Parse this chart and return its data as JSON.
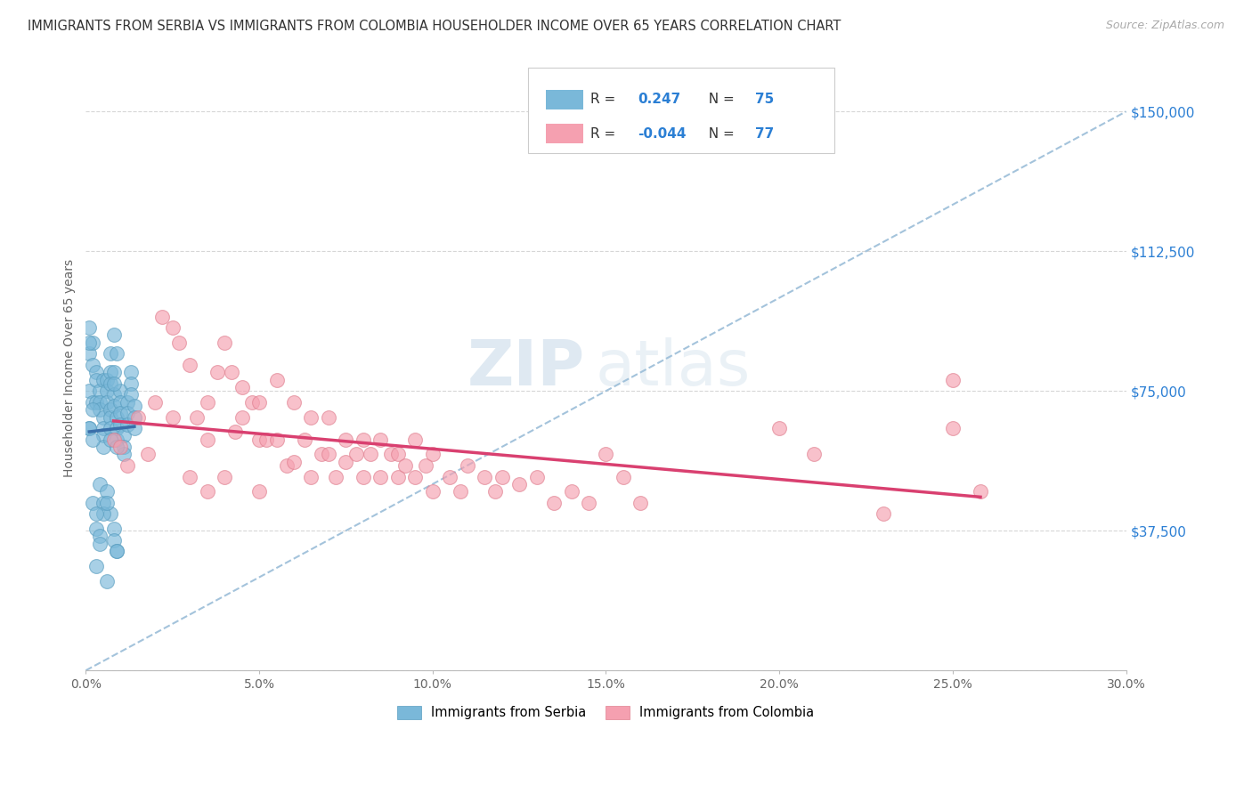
{
  "title": "IMMIGRANTS FROM SERBIA VS IMMIGRANTS FROM COLOMBIA HOUSEHOLDER INCOME OVER 65 YEARS CORRELATION CHART",
  "source": "Source: ZipAtlas.com",
  "ylabel": "Householder Income Over 65 years",
  "xlim": [
    0.0,
    0.3
  ],
  "ylim": [
    0,
    162500
  ],
  "xtick_labels": [
    "0.0%",
    "",
    "5.0%",
    "",
    "10.0%",
    "",
    "15.0%",
    "",
    "20.0%",
    "",
    "25.0%",
    "",
    "30.0%"
  ],
  "xtick_vals": [
    0.0,
    0.025,
    0.05,
    0.075,
    0.1,
    0.125,
    0.15,
    0.175,
    0.2,
    0.225,
    0.25,
    0.275,
    0.3
  ],
  "ytick_vals": [
    0,
    37500,
    75000,
    112500,
    150000
  ],
  "ytick_labels": [
    "",
    "$37,500",
    "$75,000",
    "$112,500",
    "$150,000"
  ],
  "serbia_color": "#7ab8d9",
  "colombia_color": "#f5a0b0",
  "serbia_edge_color": "#5a9ec0",
  "colombia_edge_color": "#e08090",
  "serbia_line_color": "#3a6faa",
  "colombia_line_color": "#d94070",
  "ref_line_color": "#9abdd8",
  "serbia_R": "0.247",
  "serbia_N": "75",
  "colombia_R": "-0.044",
  "colombia_N": "77",
  "serbia_label": "Immigrants from Serbia",
  "colombia_label": "Immigrants from Colombia",
  "background_color": "#ffffff",
  "grid_color": "#cccccc",
  "watermark_zip": "ZIP",
  "watermark_atlas": "atlas",
  "title_color": "#333333",
  "axis_label_color": "#666666",
  "value_color": "#2b7fd4",
  "serbia_pts_x": [
    0.001,
    0.001,
    0.001,
    0.001,
    0.002,
    0.002,
    0.002,
    0.002,
    0.003,
    0.003,
    0.003,
    0.003,
    0.004,
    0.004,
    0.004,
    0.004,
    0.004,
    0.005,
    0.005,
    0.005,
    0.005,
    0.005,
    0.006,
    0.006,
    0.006,
    0.006,
    0.007,
    0.007,
    0.007,
    0.007,
    0.007,
    0.007,
    0.008,
    0.008,
    0.008,
    0.008,
    0.008,
    0.009,
    0.009,
    0.009,
    0.009,
    0.01,
    0.01,
    0.01,
    0.01,
    0.011,
    0.011,
    0.011,
    0.012,
    0.012,
    0.012,
    0.013,
    0.013,
    0.013,
    0.014,
    0.014,
    0.003,
    0.004,
    0.005,
    0.005,
    0.006,
    0.006,
    0.007,
    0.007,
    0.008,
    0.008,
    0.009,
    0.009,
    0.002,
    0.001,
    0.001,
    0.002,
    0.003,
    0.009,
    0.014
  ],
  "serbia_pts_y": [
    92000,
    85000,
    75000,
    65000,
    88000,
    82000,
    72000,
    45000,
    80000,
    78000,
    72000,
    38000,
    75000,
    72000,
    70000,
    50000,
    36000,
    78000,
    68000,
    65000,
    63000,
    45000,
    78000,
    75000,
    72000,
    48000,
    80000,
    77000,
    70000,
    68000,
    65000,
    42000,
    80000,
    74000,
    71000,
    38000,
    35000,
    68000,
    65000,
    62000,
    32000,
    75000,
    72000,
    69000,
    66000,
    63000,
    60000,
    58000,
    72000,
    69000,
    66000,
    80000,
    77000,
    74000,
    71000,
    68000,
    28000,
    34000,
    42000,
    60000,
    24000,
    45000,
    62000,
    85000,
    77000,
    90000,
    60000,
    85000,
    70000,
    88000,
    65000,
    62000,
    42000,
    32000,
    65000
  ],
  "colombia_pts_x": [
    0.008,
    0.01,
    0.012,
    0.015,
    0.018,
    0.02,
    0.022,
    0.025,
    0.025,
    0.027,
    0.03,
    0.03,
    0.032,
    0.035,
    0.035,
    0.035,
    0.038,
    0.04,
    0.04,
    0.042,
    0.043,
    0.045,
    0.045,
    0.048,
    0.05,
    0.05,
    0.05,
    0.052,
    0.055,
    0.055,
    0.058,
    0.06,
    0.06,
    0.063,
    0.065,
    0.065,
    0.068,
    0.07,
    0.07,
    0.072,
    0.075,
    0.075,
    0.078,
    0.08,
    0.08,
    0.082,
    0.085,
    0.085,
    0.088,
    0.09,
    0.09,
    0.092,
    0.095,
    0.095,
    0.098,
    0.1,
    0.1,
    0.105,
    0.108,
    0.11,
    0.115,
    0.118,
    0.12,
    0.125,
    0.13,
    0.135,
    0.14,
    0.145,
    0.15,
    0.155,
    0.16,
    0.2,
    0.21,
    0.23,
    0.25,
    0.25,
    0.258
  ],
  "colombia_pts_y": [
    62000,
    60000,
    55000,
    68000,
    58000,
    72000,
    95000,
    68000,
    92000,
    88000,
    82000,
    52000,
    68000,
    72000,
    62000,
    48000,
    80000,
    88000,
    52000,
    80000,
    64000,
    76000,
    68000,
    72000,
    72000,
    62000,
    48000,
    62000,
    78000,
    62000,
    55000,
    72000,
    56000,
    62000,
    68000,
    52000,
    58000,
    68000,
    58000,
    52000,
    62000,
    56000,
    58000,
    62000,
    52000,
    58000,
    62000,
    52000,
    58000,
    58000,
    52000,
    55000,
    62000,
    52000,
    55000,
    58000,
    48000,
    52000,
    48000,
    55000,
    52000,
    48000,
    52000,
    50000,
    52000,
    45000,
    48000,
    45000,
    58000,
    52000,
    45000,
    65000,
    58000,
    42000,
    78000,
    65000,
    48000
  ]
}
